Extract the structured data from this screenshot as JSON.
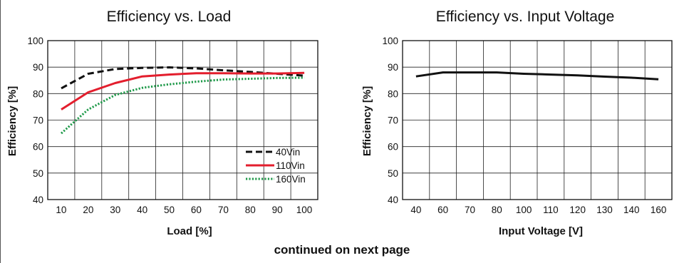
{
  "footer": "continued on next page",
  "chart_data": [
    {
      "type": "line",
      "title": "Efficiency vs. Load",
      "xlabel": "Load [%]",
      "ylabel": "Efficiency [%]",
      "xlim": [
        10,
        100
      ],
      "ylim": [
        40,
        100
      ],
      "x_ticks": [
        10,
        20,
        30,
        40,
        50,
        60,
        70,
        80,
        90,
        100
      ],
      "y_ticks": [
        40,
        50,
        60,
        70,
        80,
        90,
        100
      ],
      "grid": true,
      "legend_position": "bottom-right",
      "series": [
        {
          "name": "40Vin",
          "color": "#111111",
          "style": "dashed",
          "x": [
            10,
            20,
            30,
            40,
            50,
            60,
            70,
            80,
            90,
            100
          ],
          "y": [
            82,
            87.5,
            89.3,
            89.7,
            89.9,
            89.5,
            88.8,
            88.2,
            87.5,
            86.8
          ]
        },
        {
          "name": "110Vin",
          "color": "#e31e2d",
          "style": "solid",
          "x": [
            10,
            20,
            30,
            40,
            50,
            60,
            70,
            80,
            90,
            100
          ],
          "y": [
            74,
            80.5,
            84,
            86.5,
            87.2,
            87.7,
            87.7,
            87.6,
            87.6,
            87.8
          ]
        },
        {
          "name": "160Vin",
          "color": "#1f9a4a",
          "style": "dotted",
          "x": [
            10,
            20,
            30,
            40,
            50,
            60,
            70,
            80,
            90,
            100
          ],
          "y": [
            65,
            74,
            79.5,
            82.2,
            83.5,
            84.5,
            85.3,
            85.6,
            85.9,
            86
          ]
        }
      ]
    },
    {
      "type": "line",
      "title": "Efficiency vs. Input Voltage",
      "xlabel": "Input Voltage [V]",
      "ylabel": "Efficiency [%]",
      "xlim": [
        40,
        160
      ],
      "ylim": [
        40,
        100
      ],
      "x_ticks": [
        40,
        60,
        70,
        80,
        100,
        110,
        120,
        130,
        140,
        160
      ],
      "y_ticks": [
        40,
        50,
        60,
        70,
        80,
        90,
        100
      ],
      "grid": true,
      "series": [
        {
          "color": "#111111",
          "style": "solid",
          "x": [
            40,
            60,
            70,
            80,
            100,
            110,
            120,
            130,
            140,
            160
          ],
          "y": [
            86.5,
            88,
            88,
            88,
            87.5,
            87.2,
            86.9,
            86.4,
            86,
            85.4
          ]
        }
      ]
    }
  ]
}
